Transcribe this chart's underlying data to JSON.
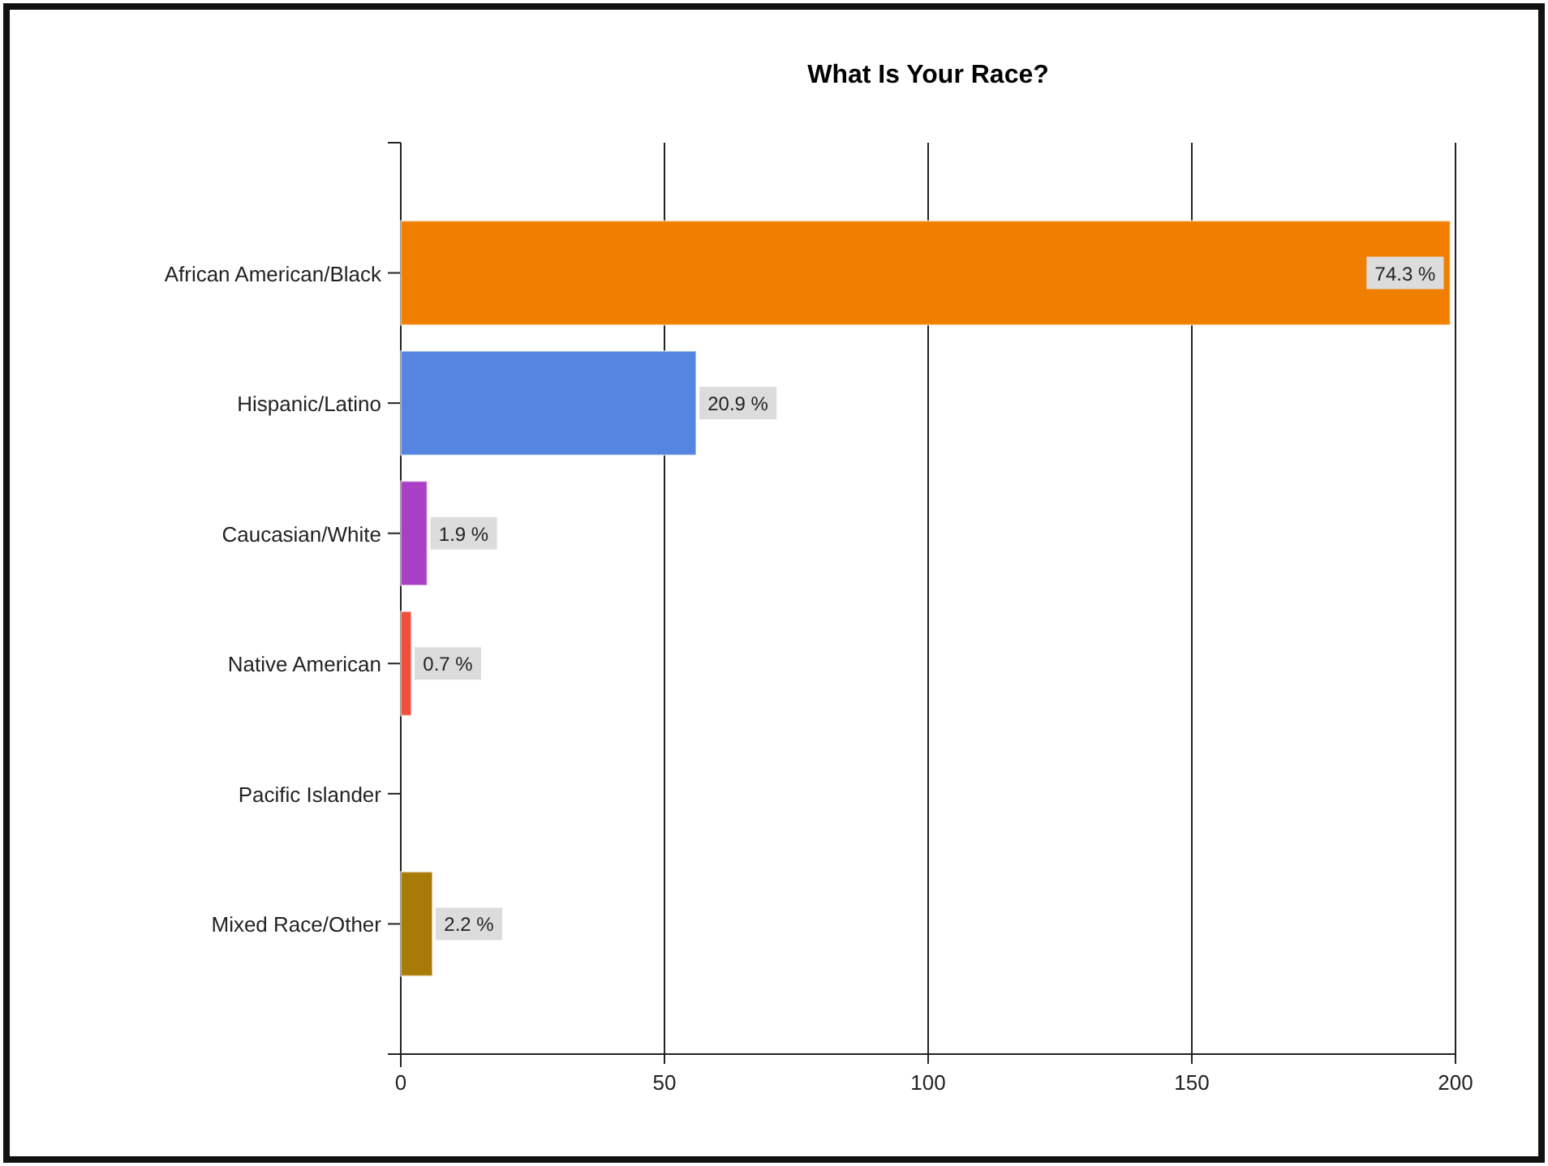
{
  "chart_data": {
    "type": "bar",
    "orientation": "horizontal",
    "title": "What Is Your Race?",
    "categories": [
      "African American/Black",
      "Hispanic/Latino",
      "Caucasian/White",
      "Native American",
      "Pacific Islander",
      "Mixed Race/Other"
    ],
    "values": [
      199,
      56,
      5,
      2,
      0,
      6
    ],
    "colors": [
      "#f07f00",
      "#5585e0",
      "#a93fc4",
      "#f0503a",
      "#888888",
      "#a87a08"
    ],
    "annotations": [
      {
        "text": "74.3 %",
        "x": 199,
        "y": "African American/Black"
      },
      {
        "text": "20.9 %",
        "x": 56,
        "y": "Hispanic/Latino"
      },
      {
        "text": "1.9 %",
        "x": 5,
        "y": "Caucasian/White"
      },
      {
        "text": "0.7 %",
        "x": 2,
        "y": "Native American"
      },
      {
        "text": "2.2 %",
        "x": 6,
        "y": "Mixed Race/Other"
      }
    ],
    "xlim": [
      0,
      200
    ],
    "xticks": [
      0,
      50,
      100,
      150,
      200
    ],
    "grid": "x"
  }
}
